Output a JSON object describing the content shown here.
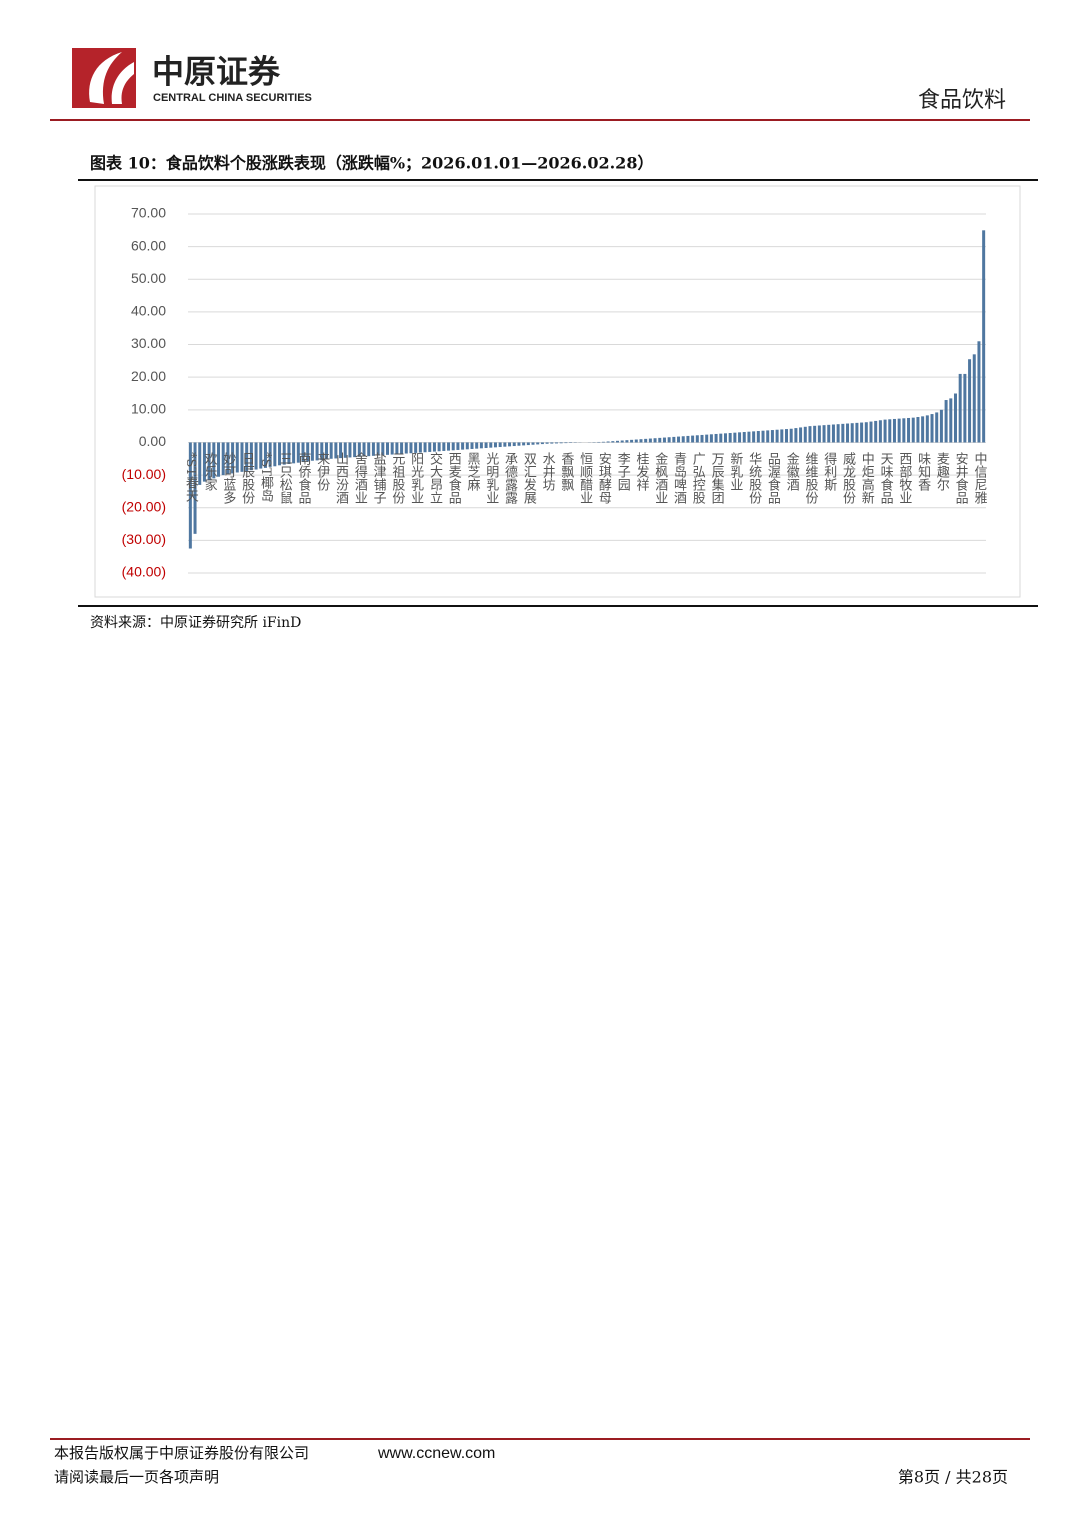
{
  "header": {
    "company": "中原证券",
    "company_en": "CENTRAL CHINA SECURITIES",
    "sector": "食品饮料"
  },
  "figure": {
    "caption": "图表 10：食品饮料个股涨跌表现（涨跌幅%；2026.01.01—2026.02.28）",
    "source": "资料来源：中原证券研究所 iFinD"
  },
  "chart_data": {
    "type": "bar",
    "color": "#4f77a0",
    "grid": true,
    "ylim": [
      -40,
      70
    ],
    "yticks": [
      {
        "value": 70,
        "label": "70.00"
      },
      {
        "value": 60,
        "label": "60.00"
      },
      {
        "value": 50,
        "label": "50.00"
      },
      {
        "value": 40,
        "label": "40.00"
      },
      {
        "value": 30,
        "label": "30.00"
      },
      {
        "value": 20,
        "label": "20.00"
      },
      {
        "value": 10,
        "label": "10.00"
      },
      {
        "value": 0,
        "label": "0.00"
      },
      {
        "value": -10,
        "label": "(10.00)"
      },
      {
        "value": -20,
        "label": "(20.00)"
      },
      {
        "value": -30,
        "label": "(30.00)"
      },
      {
        "value": -40,
        "label": "(40.00)"
      }
    ],
    "categories": [
      "*ST春天",
      null,
      null,
      null,
      "欢乐家",
      null,
      null,
      null,
      "妙可蓝多",
      null,
      null,
      null,
      "日辰股份",
      null,
      null,
      null,
      "*ST椰岛",
      null,
      null,
      null,
      "三只松鼠",
      null,
      null,
      null,
      "南侨食品",
      null,
      null,
      null,
      "来伊份",
      null,
      null,
      null,
      "山西汾酒",
      null,
      null,
      null,
      "舍得酒业",
      null,
      null,
      null,
      "盐津铺子",
      null,
      null,
      null,
      "元祖股份",
      null,
      null,
      null,
      "阳光乳业",
      null,
      null,
      null,
      "交大昂立",
      null,
      null,
      null,
      "西麦食品",
      null,
      null,
      null,
      "黑芝麻",
      null,
      null,
      null,
      "光明乳业",
      null,
      null,
      null,
      "承德露露",
      null,
      null,
      null,
      "双汇发展",
      null,
      null,
      null,
      "水井坊",
      null,
      null,
      null,
      "香飘飘",
      null,
      null,
      null,
      "恒顺醋业",
      null,
      null,
      null,
      "安琪酵母",
      null,
      null,
      null,
      "李子园",
      null,
      null,
      null,
      "桂发祥",
      null,
      null,
      null,
      "金枫酒业",
      null,
      null,
      null,
      "青岛啤酒",
      null,
      null,
      null,
      "广弘控股",
      null,
      null,
      null,
      "万辰集团",
      null,
      null,
      null,
      "新乳业",
      null,
      null,
      null,
      "华统股份",
      null,
      null,
      null,
      "品渥食品",
      null,
      null,
      null,
      "金徽酒",
      null,
      null,
      null,
      "维维股份",
      null,
      null,
      null,
      "得利斯",
      null,
      null,
      null,
      "威龙股份",
      null,
      null,
      null,
      "中炬高新",
      null,
      null,
      null,
      "天味食品",
      null,
      null,
      null,
      "西部牧业",
      null,
      null,
      null,
      "味知香",
      null,
      null,
      null,
      "麦趣尔",
      null,
      null,
      null,
      "安井食品",
      null,
      null,
      null,
      "中信尼雅",
      null
    ],
    "values": [
      -32.5,
      -28.0,
      -13.0,
      -12.0,
      -11.5,
      -11.0,
      -10.5,
      -10.0,
      -9.8,
      -9.5,
      -9.2,
      -9.0,
      -8.8,
      -8.5,
      -8.3,
      -8.0,
      -7.8,
      -7.5,
      -7.3,
      -7.0,
      -6.8,
      -6.6,
      -6.4,
      -6.2,
      -6.0,
      -5.8,
      -5.6,
      -5.5,
      -5.4,
      -5.2,
      -5.0,
      -4.9,
      -4.8,
      -4.7,
      -4.6,
      -4.5,
      -4.4,
      -4.3,
      -4.2,
      -4.1,
      -4.0,
      -3.9,
      -3.8,
      -3.7,
      -3.6,
      -3.5,
      -3.4,
      -3.3,
      -3.2,
      -3.1,
      -3.0,
      -2.9,
      -2.8,
      -2.7,
      -2.6,
      -2.5,
      -2.4,
      -2.3,
      -2.2,
      -2.1,
      -2.0,
      -1.9,
      -1.8,
      -1.7,
      -1.6,
      -1.5,
      -1.4,
      -1.3,
      -1.2,
      -1.1,
      -1.0,
      -0.9,
      -0.8,
      -0.7,
      -0.6,
      -0.5,
      -0.4,
      -0.35,
      -0.3,
      -0.25,
      -0.2,
      -0.15,
      -0.1,
      -0.05,
      0.0,
      0.05,
      0.1,
      0.15,
      0.2,
      0.3,
      0.4,
      0.5,
      0.6,
      0.7,
      0.8,
      0.9,
      1.0,
      1.1,
      1.2,
      1.3,
      1.4,
      1.5,
      1.6,
      1.7,
      1.8,
      1.9,
      2.0,
      2.1,
      2.2,
      2.3,
      2.4,
      2.5,
      2.6,
      2.7,
      2.8,
      2.9,
      3.0,
      3.1,
      3.2,
      3.3,
      3.4,
      3.5,
      3.6,
      3.7,
      3.8,
      3.9,
      4.0,
      4.1,
      4.2,
      4.4,
      4.6,
      4.8,
      5.0,
      5.1,
      5.2,
      5.3,
      5.4,
      5.5,
      5.6,
      5.7,
      5.8,
      5.9,
      6.0,
      6.1,
      6.2,
      6.4,
      6.6,
      6.8,
      7.0,
      7.1,
      7.2,
      7.3,
      7.4,
      7.5,
      7.6,
      7.8,
      8.0,
      8.3,
      8.7,
      9.2,
      10.0,
      13.0,
      13.5,
      15.0,
      21.0,
      21.0,
      25.5,
      27.0,
      31.0,
      65.0
    ]
  },
  "footer": {
    "copyright": "本报告版权属于中原证券股份有限公司",
    "website": "www.ccnew.com",
    "disclaimer": "请阅读最后一页各项声明",
    "page": "第8页 / 共28页"
  }
}
